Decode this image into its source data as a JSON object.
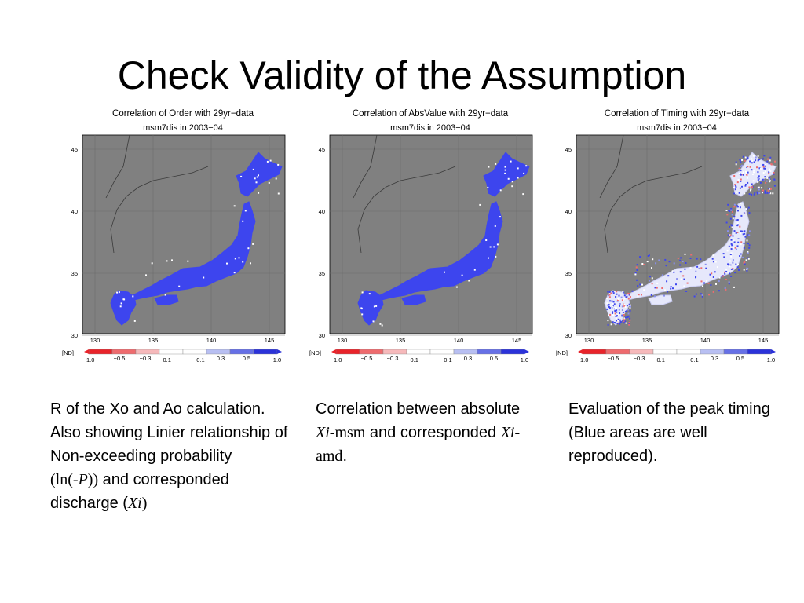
{
  "slide": {
    "title": "Check Validity of the Assumption"
  },
  "panels": [
    {
      "title": "Correlation of Order with 29yr−data",
      "subtitle": "msm7dis in 2003−04",
      "pattern": "solid"
    },
    {
      "title": "Correlation of AbsValue with 29yr−data",
      "subtitle": "msm7dis in 2003−04",
      "pattern": "solid"
    },
    {
      "title": "Correlation of Timing with 29yr−data",
      "subtitle": "msm7dis in 2003−04",
      "pattern": "mixed"
    }
  ],
  "map_axes": {
    "lat_ticks": [
      "45",
      "40",
      "35",
      "30"
    ],
    "lon_ticks": [
      "130",
      "135",
      "140",
      "145"
    ]
  },
  "colorbar": {
    "nd_label": "[ND]",
    "upper_labels": [
      "−0.5",
      "−0.3",
      "0.3",
      "0.5"
    ],
    "lower_labels": [
      "−1.0",
      "−0.1",
      "0.1",
      "1.0"
    ],
    "colors": [
      "#e8232a",
      "#ee6b6e",
      "#f6b9bb",
      "#ffffff",
      "#ffffff",
      "#b8bff2",
      "#6670e6",
      "#2b32d9"
    ]
  },
  "captions": {
    "left": {
      "line1": "R of the Xo and Ao calculation.",
      "line2": "Also showing Linier relationship of Non-exceeding probability",
      "paren_open": "(",
      "ln_part": "ln(-",
      "p_part": "P",
      "paren_close": "))",
      "after_ln": " and corresponded discharge (",
      "xi": "Xi",
      "end": ")"
    },
    "middle": {
      "text1": "Correlation between absolute ",
      "xi1": "Xi",
      "msm": "-msm",
      "text2": " and corresponded ",
      "xi2": "Xi",
      "amd": "-amd",
      "end": "."
    },
    "right": {
      "text": "Evaluation of the peak timing (Blue areas are well reproduced)."
    }
  }
}
